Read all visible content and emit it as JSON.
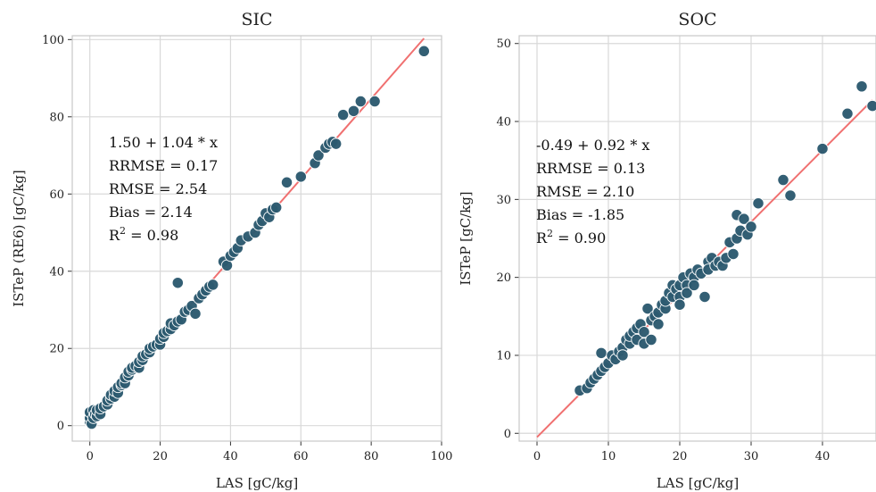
{
  "chart_data": [
    {
      "type": "scatter",
      "title": "SIC",
      "xlabel": "LAS [gC/kg]",
      "ylabel": "ISTeP (RE6) [gC/kg]",
      "xlim": [
        -5,
        100
      ],
      "ylim": [
        -4,
        101
      ],
      "xticks": [
        0,
        20,
        40,
        60,
        80,
        100
      ],
      "yticks": [
        0,
        20,
        40,
        60,
        80,
        100
      ],
      "grid": true,
      "fit_line": {
        "intercept": 1.5,
        "slope": 1.04,
        "x_range": [
          0,
          95
        ],
        "color": "#f07070"
      },
      "annotation": [
        "1.50 + 1.04 * x",
        "RRMSE = 0.17",
        "RMSE = 2.54",
        "Bias = 2.14",
        "R² = 0.98"
      ],
      "point_color": "#2c5a70",
      "points": [
        [
          0,
          1
        ],
        [
          0,
          2
        ],
        [
          0,
          3.5
        ],
        [
          0.5,
          0.5
        ],
        [
          1,
          2
        ],
        [
          1,
          4
        ],
        [
          1.5,
          3
        ],
        [
          2,
          2.5
        ],
        [
          2,
          4
        ],
        [
          3,
          3
        ],
        [
          3,
          4.5
        ],
        [
          4,
          5
        ],
        [
          5,
          5.5
        ],
        [
          5,
          6.5
        ],
        [
          6,
          7
        ],
        [
          6,
          8
        ],
        [
          7,
          7.5
        ],
        [
          7,
          9
        ],
        [
          8,
          8.5
        ],
        [
          8,
          10
        ],
        [
          9,
          10.5
        ],
        [
          9,
          11
        ],
        [
          10,
          11
        ],
        [
          10,
          12.5
        ],
        [
          11,
          13
        ],
        [
          11,
          14
        ],
        [
          12,
          14.5
        ],
        [
          12,
          15
        ],
        [
          13,
          15.5
        ],
        [
          14,
          15
        ],
        [
          14,
          16.5
        ],
        [
          15,
          17
        ],
        [
          15,
          18
        ],
        [
          16,
          18.5
        ],
        [
          17,
          19
        ],
        [
          17,
          20
        ],
        [
          18,
          20.5
        ],
        [
          19,
          21
        ],
        [
          20,
          21
        ],
        [
          20,
          22.5
        ],
        [
          21,
          23
        ],
        [
          21,
          24
        ],
        [
          22,
          24.5
        ],
        [
          23,
          25
        ],
        [
          23,
          26.5
        ],
        [
          24,
          26
        ],
        [
          25,
          27
        ],
        [
          25,
          37
        ],
        [
          26,
          27.5
        ],
        [
          27,
          29.5
        ],
        [
          28,
          30
        ],
        [
          29,
          31
        ],
        [
          30,
          29
        ],
        [
          31,
          33
        ],
        [
          32,
          34
        ],
        [
          33,
          35
        ],
        [
          34,
          36
        ],
        [
          35,
          36.5
        ],
        [
          38,
          42.5
        ],
        [
          39,
          41.5
        ],
        [
          40,
          44
        ],
        [
          41,
          45
        ],
        [
          42,
          46
        ],
        [
          43,
          48
        ],
        [
          45,
          49
        ],
        [
          47,
          50
        ],
        [
          48,
          52
        ],
        [
          49,
          53
        ],
        [
          50,
          55
        ],
        [
          51,
          54
        ],
        [
          52,
          56
        ],
        [
          53,
          56.5
        ],
        [
          56,
          63
        ],
        [
          60,
          64.5
        ],
        [
          64,
          68
        ],
        [
          65,
          70
        ],
        [
          67,
          72
        ],
        [
          68,
          73
        ],
        [
          69,
          73.5
        ],
        [
          70,
          73
        ],
        [
          72,
          80.5
        ],
        [
          75,
          81.5
        ],
        [
          77,
          84
        ],
        [
          81,
          84
        ],
        [
          95,
          97
        ]
      ]
    },
    {
      "type": "scatter",
      "title": "SOC",
      "xlabel": "LAS [gC/kg]",
      "ylabel": "ISTeP [gC/kg]",
      "xlim": [
        -2.5,
        47.5
      ],
      "ylim": [
        -1,
        51
      ],
      "xticks": [
        0,
        10,
        20,
        30,
        40
      ],
      "yticks": [
        0,
        10,
        20,
        30,
        40,
        50
      ],
      "grid": true,
      "fit_line": {
        "intercept": -0.49,
        "slope": 0.92,
        "x_range": [
          0,
          47
        ],
        "color": "#f07070"
      },
      "annotation": [
        "-0.49 + 0.92 * x",
        "RRMSE = 0.13",
        "RMSE = 2.10",
        "Bias = -1.85",
        "R² = 0.90"
      ],
      "point_color": "#2c5a70",
      "points": [
        [
          6,
          5.5
        ],
        [
          7,
          5.8
        ],
        [
          7.5,
          6.5
        ],
        [
          8,
          7
        ],
        [
          8.5,
          7.5
        ],
        [
          9,
          10.3
        ],
        [
          9,
          8
        ],
        [
          9.5,
          8.5
        ],
        [
          10,
          9
        ],
        [
          10.5,
          10
        ],
        [
          11,
          9.5
        ],
        [
          11.5,
          10.5
        ],
        [
          12,
          11
        ],
        [
          12,
          10
        ],
        [
          12.5,
          12
        ],
        [
          13,
          11.5
        ],
        [
          13,
          12.5
        ],
        [
          13.5,
          13
        ],
        [
          14,
          12
        ],
        [
          14,
          13.5
        ],
        [
          14.5,
          14
        ],
        [
          15,
          13
        ],
        [
          15,
          11.5
        ],
        [
          15.5,
          16
        ],
        [
          16,
          14.5
        ],
        [
          16,
          12
        ],
        [
          16.5,
          15
        ],
        [
          17,
          15.5
        ],
        [
          17,
          14
        ],
        [
          17.5,
          16.5
        ],
        [
          18,
          16
        ],
        [
          18,
          17
        ],
        [
          18.5,
          18
        ],
        [
          19,
          19
        ],
        [
          19,
          17.5
        ],
        [
          19.5,
          18.5
        ],
        [
          20,
          19
        ],
        [
          20,
          17.5
        ],
        [
          20,
          16.5
        ],
        [
          20.5,
          20
        ],
        [
          21,
          19
        ],
        [
          21,
          18
        ],
        [
          21.5,
          20.5
        ],
        [
          22,
          20
        ],
        [
          22,
          19
        ],
        [
          22.5,
          21
        ],
        [
          23,
          20.5
        ],
        [
          23.5,
          17.5
        ],
        [
          24,
          22
        ],
        [
          24,
          21
        ],
        [
          24.5,
          22.5
        ],
        [
          25,
          21.5
        ],
        [
          25.5,
          22
        ],
        [
          26,
          21.5
        ],
        [
          26.5,
          22.5
        ],
        [
          27,
          24.5
        ],
        [
          27.5,
          23
        ],
        [
          28,
          28
        ],
        [
          28,
          25
        ],
        [
          28.5,
          26
        ],
        [
          29,
          27.5
        ],
        [
          29.5,
          25.5
        ],
        [
          30,
          26.5
        ],
        [
          31,
          29.5
        ],
        [
          34.5,
          32.5
        ],
        [
          35.5,
          30.5
        ],
        [
          40,
          36.5
        ],
        [
          43.5,
          41
        ],
        [
          45.5,
          44.5
        ],
        [
          47,
          42
        ]
      ]
    }
  ]
}
